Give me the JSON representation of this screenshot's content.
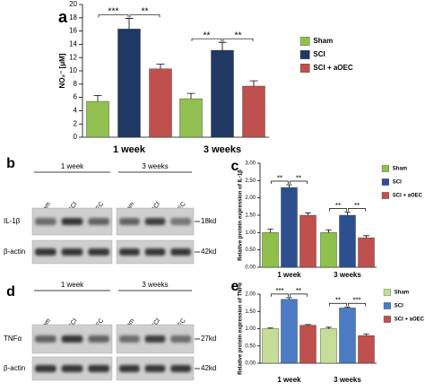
{
  "chart_data": [
    {
      "type": "bar",
      "panel_label": "a",
      "ylabel": "NO₂⁻ [μM]",
      "categories": [
        "1 week",
        "3 weeks"
      ],
      "series": [
        {
          "name": "Sham",
          "color": "#92c050",
          "values": [
            5.4,
            5.8
          ],
          "errors": [
            0.9,
            0.8
          ]
        },
        {
          "name": "SCI",
          "color": "#1f3864",
          "values": [
            16.3,
            13.1
          ],
          "errors": [
            1.6,
            1.2
          ]
        },
        {
          "name": "SCI + aOEC",
          "color": "#c0504d",
          "values": [
            10.3,
            7.7
          ],
          "errors": [
            0.7,
            0.8
          ]
        }
      ],
      "significance": [
        [
          "***",
          "**"
        ],
        [
          "**",
          "**"
        ]
      ],
      "ylim": [
        0,
        20
      ],
      "yticks": [
        0,
        2,
        4,
        6,
        8,
        10,
        12,
        14,
        16,
        18,
        20
      ]
    },
    {
      "type": "bar",
      "panel_label": "c",
      "ylabel": "Relative protein expression of IL-1β",
      "categories": [
        "1 week",
        "3 weeks"
      ],
      "series": [
        {
          "name": "Sham",
          "color": "#8fc04b",
          "values": [
            1.0,
            1.0
          ],
          "errors": [
            0.1,
            0.08
          ]
        },
        {
          "name": "SCI",
          "color": "#2c4f8f",
          "values": [
            2.3,
            1.5
          ],
          "errors": [
            0.08,
            0.09
          ]
        },
        {
          "name": "SCI + aOEC",
          "color": "#c0504d",
          "values": [
            1.5,
            0.85
          ],
          "errors": [
            0.07,
            0.06
          ]
        }
      ],
      "significance": [
        [
          "**",
          "**"
        ],
        [
          "**",
          "**"
        ]
      ],
      "ylim": [
        0,
        3
      ],
      "yticks": [
        {
          "value": 0,
          "label": "0.00"
        },
        {
          "value": 0.5,
          "label": "0.50"
        },
        {
          "value": 1,
          "label": "1.00"
        },
        {
          "value": 1.5,
          "label": "1.50"
        },
        {
          "value": 2,
          "label": "2.00"
        },
        {
          "value": 2.5,
          "label": "2.50"
        },
        {
          "value": 3,
          "label": "3.00"
        }
      ]
    },
    {
      "type": "bar",
      "panel_label": "e",
      "ylabel": "Relative protein expression of TNFα",
      "categories": [
        "1 week",
        "3 weeks"
      ],
      "series": [
        {
          "name": "Sham",
          "color": "#c5dd97",
          "values": [
            1.0,
            1.0
          ],
          "errors": [
            0.02,
            0.04
          ]
        },
        {
          "name": "SCI",
          "color": "#4a7bc3",
          "values": [
            1.85,
            1.6
          ],
          "errors": [
            0.05,
            0.03
          ]
        },
        {
          "name": "SCI + aOEC",
          "color": "#c0504d",
          "values": [
            1.1,
            0.8
          ],
          "errors": [
            0.02,
            0.04
          ]
        }
      ],
      "significance": [
        [
          "***",
          "**"
        ],
        [
          "**",
          "***"
        ]
      ],
      "ylim": [
        0,
        2
      ],
      "yticks": [
        {
          "value": 0,
          "label": "0.00"
        },
        {
          "value": 0.5,
          "label": "0.50"
        },
        {
          "value": 1,
          "label": "1.00"
        },
        {
          "value": 1.5,
          "label": "1.50"
        },
        {
          "value": 2,
          "label": "2.00"
        }
      ]
    }
  ],
  "blots": [
    {
      "panel_label": "b",
      "groups": [
        "1 week",
        "3 weeks"
      ],
      "lanes": [
        "Sham",
        "SCI",
        "SCI + aOEC"
      ],
      "rows": [
        {
          "label": "IL-1β",
          "size": "18kd"
        },
        {
          "label": "β-actin",
          "size": "42kd"
        }
      ]
    },
    {
      "panel_label": "d",
      "groups": [
        "1 week",
        "3 weeks"
      ],
      "lanes": [
        "Sham",
        "SCI",
        "SCI + aOEC"
      ],
      "rows": [
        {
          "label": "TNFα",
          "size": "27kd"
        },
        {
          "label": "β-actin",
          "size": "42kd"
        }
      ]
    }
  ]
}
